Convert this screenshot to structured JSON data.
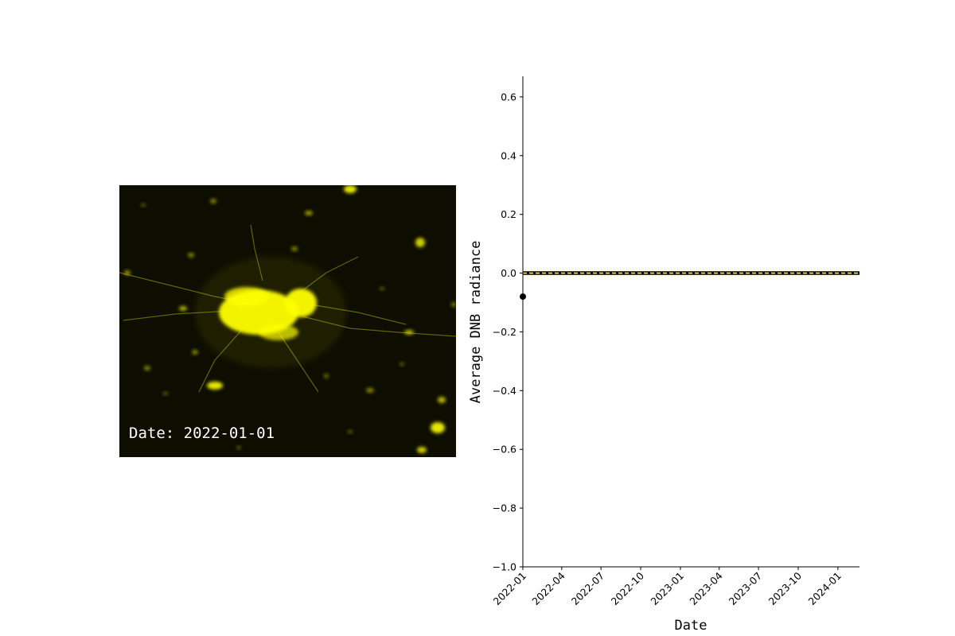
{
  "map": {
    "date_label": "Date: 2022-01-01",
    "background_color": "#0e0e00",
    "light_color": "#ffff00"
  },
  "chart_data": {
    "type": "line",
    "title": "",
    "xlabel": "Date",
    "ylabel": "Average DNB radiance",
    "xlim": [
      "2022-01-01",
      "2024-02-20"
    ],
    "ylim": [
      -1.0,
      0.67
    ],
    "x_ticks": [
      "2022-01",
      "2022-04",
      "2022-07",
      "2022-10",
      "2023-01",
      "2023-04",
      "2023-07",
      "2023-10",
      "2024-01"
    ],
    "y_ticks": [
      -1.0,
      -0.8,
      -0.6,
      -0.4,
      -0.2,
      0.0,
      0.2,
      0.4,
      0.6
    ],
    "y_tick_labels": [
      "−1.0",
      "−0.8",
      "−0.6",
      "−0.4",
      "−0.2",
      "0.0",
      "0.2",
      "0.4",
      "0.6"
    ],
    "series": [
      {
        "style": "dashed line, black with yellow dashes",
        "color": "#ffff00",
        "edge_color": "#000000",
        "x": [
          "2022-01-01",
          "2024-02-20"
        ],
        "y": [
          0.0,
          0.0
        ]
      },
      {
        "style": "marker",
        "color": "#000000",
        "x": [
          "2022-01-01"
        ],
        "y": [
          -0.08
        ]
      }
    ],
    "grid": false,
    "legend": "none"
  }
}
